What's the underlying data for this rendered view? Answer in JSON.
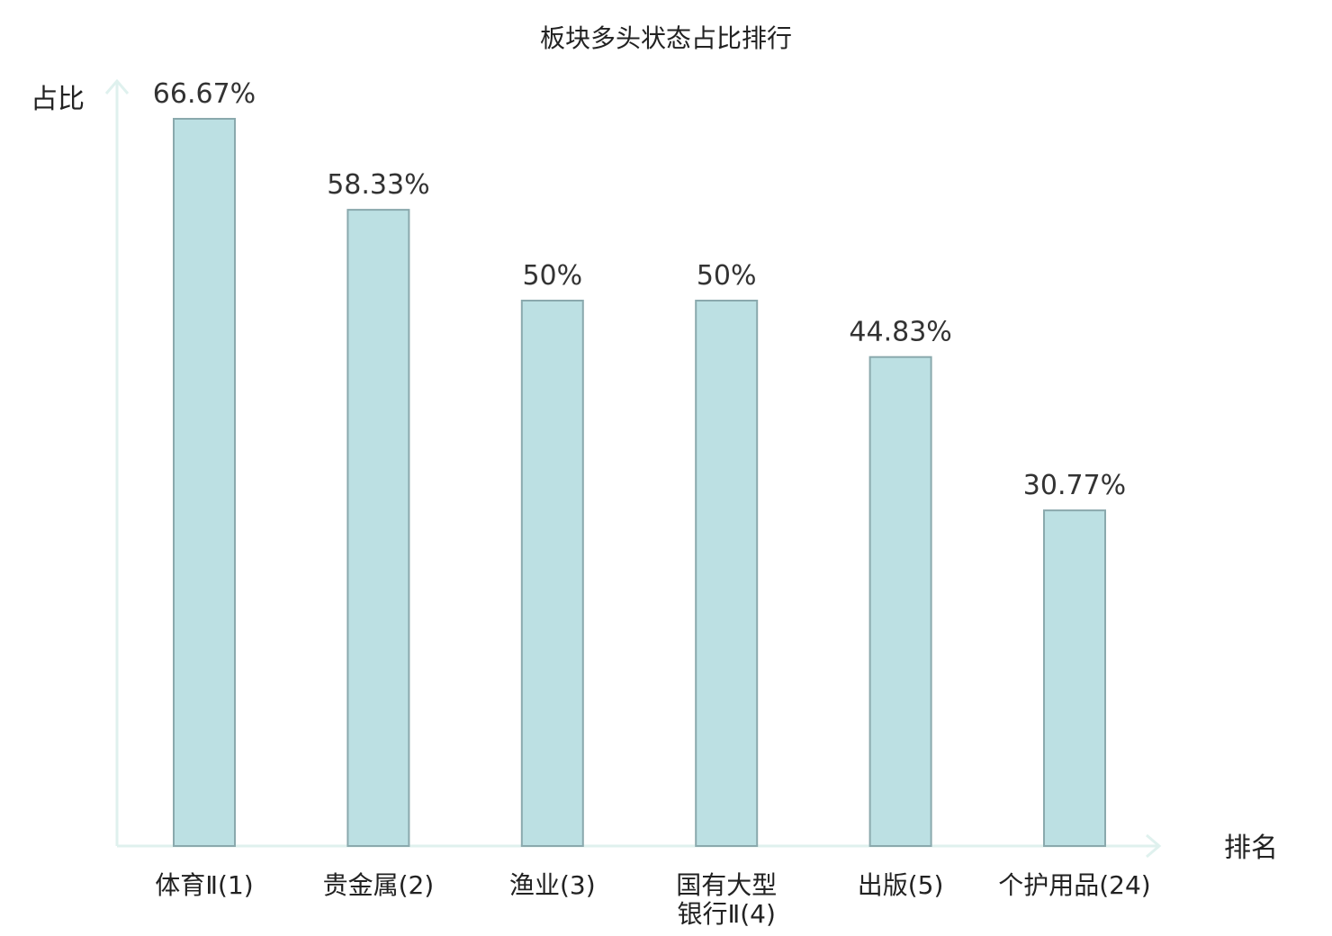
{
  "chart_data": {
    "type": "bar",
    "title": "板块多头状态占比排行",
    "ylabel": "占比",
    "xlabel": "排名",
    "categories": [
      [
        "体育Ⅱ(1)"
      ],
      [
        "贵金属(2)"
      ],
      [
        "渔业(3)"
      ],
      [
        "国有大型",
        "银行Ⅱ(4)"
      ],
      [
        "出版(5)"
      ],
      [
        "个护用品(24)"
      ]
    ],
    "values": [
      66.67,
      58.33,
      50,
      50,
      44.83,
      30.77
    ],
    "value_labels": [
      "66.67%",
      "58.33%",
      "50%",
      "50%",
      "44.83%",
      "30.77%"
    ],
    "highlight_index": 5,
    "ylim": [
      0,
      70
    ],
    "grid": false,
    "colors": {
      "bar_fill": "#bce0e3",
      "bar_stroke": "#8aa9ad",
      "axis": "#dff1ee",
      "highlight_text": "#e02020",
      "text": "#222222"
    }
  }
}
